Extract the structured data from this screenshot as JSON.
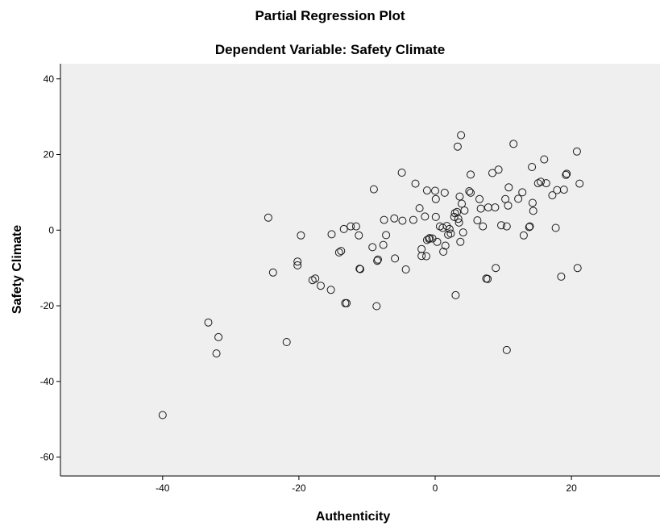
{
  "chart_data": {
    "type": "scatter",
    "title": "Partial Regression Plot",
    "subtitle": "Dependent Variable: Safety Climate",
    "xlabel": "Authenticity",
    "ylabel": "Safety Climate",
    "xlim": [
      -55,
      33
    ],
    "ylim": [
      -65,
      44
    ],
    "x_ticks": [
      -40,
      -20,
      0,
      20
    ],
    "x_tick_labels": [
      "-40",
      "-20",
      "0",
      "20"
    ],
    "y_ticks": [
      -60,
      -40,
      -20,
      0,
      20,
      40
    ],
    "y_tick_labels": [
      "-60",
      "-40",
      "-20",
      "0",
      "20",
      "40"
    ],
    "grid": false,
    "legend": "none",
    "colors": {
      "plot_background": "#efefef",
      "marker_stroke": "#1a1a1a",
      "axis": "#000000"
    },
    "points": [
      [
        -40.0,
        -48.9
      ],
      [
        -33.3,
        -24.4
      ],
      [
        -31.8,
        -28.3
      ],
      [
        -32.1,
        -32.6
      ],
      [
        -21.8,
        -29.6
      ],
      [
        -24.5,
        3.3
      ],
      [
        -23.8,
        -11.2
      ],
      [
        -20.2,
        -8.3
      ],
      [
        -20.2,
        -9.3
      ],
      [
        -19.7,
        -1.4
      ],
      [
        -18.0,
        -13.2
      ],
      [
        -17.6,
        -12.8
      ],
      [
        -16.8,
        -14.7
      ],
      [
        -15.3,
        -15.8
      ],
      [
        -15.2,
        -1.1
      ],
      [
        -14.1,
        -5.9
      ],
      [
        -13.8,
        -5.5
      ],
      [
        -13.4,
        0.3
      ],
      [
        -13.2,
        -19.3
      ],
      [
        -13.0,
        -19.3
      ],
      [
        -12.4,
        1.0
      ],
      [
        -11.6,
        1.0
      ],
      [
        -11.2,
        -1.4
      ],
      [
        -11.1,
        -10.2
      ],
      [
        -11.0,
        -10.3
      ],
      [
        -9.2,
        -4.5
      ],
      [
        -9.0,
        10.8
      ],
      [
        -8.5,
        -8.1
      ],
      [
        -8.4,
        -7.8
      ],
      [
        -8.6,
        -20.1
      ],
      [
        -7.6,
        -3.9
      ],
      [
        -7.5,
        2.7
      ],
      [
        -7.2,
        -1.3
      ],
      [
        -6.0,
        3.1
      ],
      [
        -5.9,
        -7.5
      ],
      [
        -4.9,
        15.2
      ],
      [
        -4.8,
        2.5
      ],
      [
        -4.3,
        -10.4
      ],
      [
        -3.2,
        2.7
      ],
      [
        -2.9,
        12.3
      ],
      [
        -2.3,
        5.8
      ],
      [
        -2.0,
        -6.8
      ],
      [
        -2.0,
        -5.0
      ],
      [
        -1.5,
        3.6
      ],
      [
        -1.3,
        -6.9
      ],
      [
        -1.2,
        10.5
      ],
      [
        -1.2,
        -2.6
      ],
      [
        -0.9,
        -2.3
      ],
      [
        -0.8,
        -2.1
      ],
      [
        -0.4,
        -2.2
      ],
      [
        0.0,
        10.4
      ],
      [
        0.1,
        8.2
      ],
      [
        0.1,
        3.5
      ],
      [
        0.3,
        -3.1
      ],
      [
        0.7,
        1.0
      ],
      [
        1.1,
        0.6
      ],
      [
        1.2,
        -5.7
      ],
      [
        1.4,
        9.9
      ],
      [
        1.5,
        -4.1
      ],
      [
        1.7,
        1.1
      ],
      [
        1.9,
        -1.2
      ],
      [
        2.1,
        0.3
      ],
      [
        2.3,
        -0.9
      ],
      [
        2.8,
        3.5
      ],
      [
        2.9,
        4.5
      ],
      [
        3.0,
        -17.2
      ],
      [
        3.2,
        4.8
      ],
      [
        3.3,
        22.1
      ],
      [
        3.4,
        3.0
      ],
      [
        3.5,
        2.0
      ],
      [
        3.6,
        8.9
      ],
      [
        3.7,
        -3.1
      ],
      [
        3.8,
        25.1
      ],
      [
        3.9,
        7.0
      ],
      [
        4.1,
        -0.6
      ],
      [
        4.3,
        5.2
      ],
      [
        5.0,
        10.3
      ],
      [
        5.2,
        14.7
      ],
      [
        5.2,
        9.9
      ],
      [
        6.2,
        2.6
      ],
      [
        6.5,
        8.2
      ],
      [
        6.7,
        5.7
      ],
      [
        7.0,
        1.0
      ],
      [
        7.5,
        -12.8
      ],
      [
        7.7,
        -12.9
      ],
      [
        7.8,
        6.0
      ],
      [
        8.4,
        15.1
      ],
      [
        8.8,
        6.0
      ],
      [
        8.9,
        -10.0
      ],
      [
        9.3,
        16.0
      ],
      [
        9.7,
        1.3
      ],
      [
        10.3,
        8.2
      ],
      [
        10.5,
        -31.7
      ],
      [
        10.5,
        1.0
      ],
      [
        10.7,
        6.5
      ],
      [
        10.8,
        11.3
      ],
      [
        11.5,
        22.8
      ],
      [
        12.2,
        8.3
      ],
      [
        12.8,
        10.0
      ],
      [
        13.0,
        -1.4
      ],
      [
        13.8,
        0.8
      ],
      [
        13.9,
        1.0
      ],
      [
        14.2,
        16.7
      ],
      [
        14.3,
        7.2
      ],
      [
        14.4,
        5.1
      ],
      [
        15.1,
        12.4
      ],
      [
        15.5,
        12.8
      ],
      [
        16.0,
        18.7
      ],
      [
        16.3,
        12.4
      ],
      [
        17.2,
        9.2
      ],
      [
        17.7,
        0.6
      ],
      [
        17.9,
        10.6
      ],
      [
        18.5,
        -12.3
      ],
      [
        18.9,
        10.7
      ],
      [
        19.2,
        14.6
      ],
      [
        19.3,
        14.9
      ],
      [
        20.8,
        20.8
      ],
      [
        20.9,
        -10.0
      ],
      [
        21.2,
        12.3
      ]
    ]
  }
}
